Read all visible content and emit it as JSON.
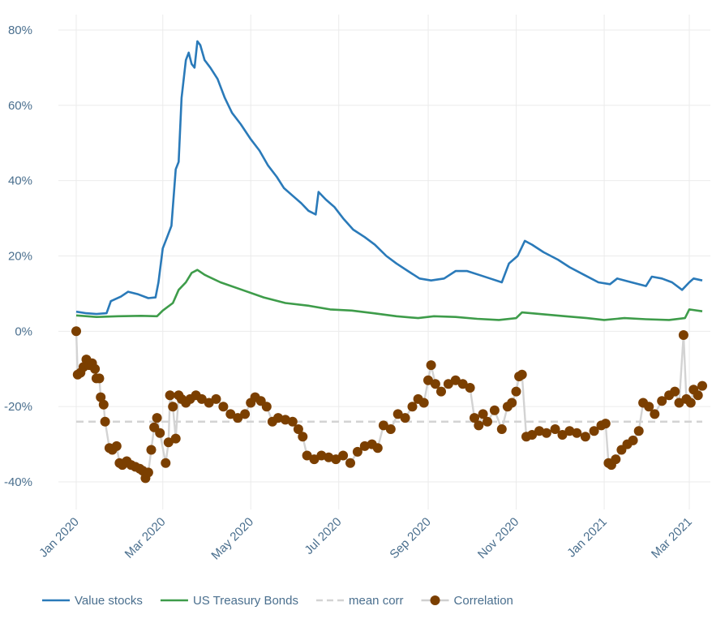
{
  "chart_data": {
    "type": "line",
    "title": "",
    "xlabel": "",
    "ylabel": "",
    "ylim": [
      -0.48,
      0.82
    ],
    "y_ticks": [
      {
        "value": 0.8,
        "label": "80%"
      },
      {
        "value": 0.6,
        "label": "60%"
      },
      {
        "value": 0.4,
        "label": "40%"
      },
      {
        "value": 0.2,
        "label": "20%"
      },
      {
        "value": 0.0,
        "label": "0%"
      },
      {
        "value": -0.2,
        "label": "-20%"
      },
      {
        "value": -0.4,
        "label": "-40%"
      }
    ],
    "x_ticks": [
      {
        "date": "2020-01-01",
        "label": "Jan 2020"
      },
      {
        "date": "2020-03-01",
        "label": "Mar 2020"
      },
      {
        "date": "2020-05-01",
        "label": "May 2020"
      },
      {
        "date": "2020-07-01",
        "label": "Jul 2020"
      },
      {
        "date": "2020-09-01",
        "label": "Sep 2020"
      },
      {
        "date": "2020-11-01",
        "label": "Nov 2020"
      },
      {
        "date": "2021-01-01",
        "label": "Jan 2021"
      },
      {
        "date": "2021-03-01",
        "label": "Mar 2021"
      }
    ],
    "grid": true,
    "legend_position": "bottom-left",
    "series": [
      {
        "name": "Value stocks",
        "type": "line",
        "color": "#2a7ab9",
        "points": [
          [
            "2020-01-01",
            0.052
          ],
          [
            "2020-01-08",
            0.048
          ],
          [
            "2020-01-15",
            0.046
          ],
          [
            "2020-01-22",
            0.048
          ],
          [
            "2020-01-25",
            0.08
          ],
          [
            "2020-02-01",
            0.092
          ],
          [
            "2020-02-06",
            0.105
          ],
          [
            "2020-02-13",
            0.098
          ],
          [
            "2020-02-20",
            0.088
          ],
          [
            "2020-02-25",
            0.09
          ],
          [
            "2020-02-27",
            0.13
          ],
          [
            "2020-03-01",
            0.22
          ],
          [
            "2020-03-04",
            0.25
          ],
          [
            "2020-03-07",
            0.28
          ],
          [
            "2020-03-10",
            0.43
          ],
          [
            "2020-03-12",
            0.45
          ],
          [
            "2020-03-14",
            0.62
          ],
          [
            "2020-03-17",
            0.72
          ],
          [
            "2020-03-19",
            0.74
          ],
          [
            "2020-03-21",
            0.71
          ],
          [
            "2020-03-23",
            0.7
          ],
          [
            "2020-03-25",
            0.77
          ],
          [
            "2020-03-27",
            0.76
          ],
          [
            "2020-03-30",
            0.72
          ],
          [
            "2020-04-03",
            0.7
          ],
          [
            "2020-04-08",
            0.67
          ],
          [
            "2020-04-13",
            0.62
          ],
          [
            "2020-04-18",
            0.58
          ],
          [
            "2020-04-24",
            0.55
          ],
          [
            "2020-05-01",
            0.51
          ],
          [
            "2020-05-07",
            0.48
          ],
          [
            "2020-05-13",
            0.44
          ],
          [
            "2020-05-19",
            0.41
          ],
          [
            "2020-05-24",
            0.38
          ],
          [
            "2020-05-30",
            0.36
          ],
          [
            "2020-06-05",
            0.34
          ],
          [
            "2020-06-10",
            0.32
          ],
          [
            "2020-06-15",
            0.31
          ],
          [
            "2020-06-17",
            0.37
          ],
          [
            "2020-06-22",
            0.35
          ],
          [
            "2020-06-28",
            0.33
          ],
          [
            "2020-07-04",
            0.3
          ],
          [
            "2020-07-11",
            0.27
          ],
          [
            "2020-07-19",
            0.25
          ],
          [
            "2020-07-26",
            0.23
          ],
          [
            "2020-08-03",
            0.2
          ],
          [
            "2020-08-10",
            0.18
          ],
          [
            "2020-08-18",
            0.16
          ],
          [
            "2020-08-26",
            0.14
          ],
          [
            "2020-09-03",
            0.135
          ],
          [
            "2020-09-12",
            0.14
          ],
          [
            "2020-09-20",
            0.16
          ],
          [
            "2020-09-28",
            0.16
          ],
          [
            "2020-10-06",
            0.15
          ],
          [
            "2020-10-14",
            0.14
          ],
          [
            "2020-10-22",
            0.13
          ],
          [
            "2020-10-27",
            0.18
          ],
          [
            "2020-11-02",
            0.2
          ],
          [
            "2020-11-07",
            0.24
          ],
          [
            "2020-11-12",
            0.23
          ],
          [
            "2020-11-20",
            0.21
          ],
          [
            "2020-11-30",
            0.19
          ],
          [
            "2020-12-08",
            0.17
          ],
          [
            "2020-12-18",
            0.15
          ],
          [
            "2020-12-28",
            0.13
          ],
          [
            "2021-01-05",
            0.125
          ],
          [
            "2021-01-10",
            0.14
          ],
          [
            "2021-01-20",
            0.13
          ],
          [
            "2021-01-30",
            0.12
          ],
          [
            "2021-02-03",
            0.145
          ],
          [
            "2021-02-10",
            0.14
          ],
          [
            "2021-02-17",
            0.13
          ],
          [
            "2021-02-24",
            0.11
          ],
          [
            "2021-03-01",
            0.13
          ],
          [
            "2021-03-04",
            0.14
          ],
          [
            "2021-03-10",
            0.135
          ]
        ]
      },
      {
        "name": "US Treasury Bonds",
        "type": "line",
        "color": "#3e9c4a",
        "points": [
          [
            "2020-01-01",
            0.042
          ],
          [
            "2020-01-15",
            0.038
          ],
          [
            "2020-01-30",
            0.04
          ],
          [
            "2020-02-15",
            0.041
          ],
          [
            "2020-02-26",
            0.04
          ],
          [
            "2020-03-01",
            0.055
          ],
          [
            "2020-03-08",
            0.075
          ],
          [
            "2020-03-12",
            0.11
          ],
          [
            "2020-03-17",
            0.13
          ],
          [
            "2020-03-21",
            0.155
          ],
          [
            "2020-03-25",
            0.163
          ],
          [
            "2020-03-30",
            0.15
          ],
          [
            "2020-04-10",
            0.13
          ],
          [
            "2020-04-25",
            0.11
          ],
          [
            "2020-05-10",
            0.09
          ],
          [
            "2020-05-25",
            0.075
          ],
          [
            "2020-06-10",
            0.068
          ],
          [
            "2020-06-25",
            0.058
          ],
          [
            "2020-07-10",
            0.055
          ],
          [
            "2020-07-25",
            0.048
          ],
          [
            "2020-08-10",
            0.04
          ],
          [
            "2020-08-25",
            0.035
          ],
          [
            "2020-09-05",
            0.04
          ],
          [
            "2020-09-20",
            0.038
          ],
          [
            "2020-10-05",
            0.033
          ],
          [
            "2020-10-20",
            0.03
          ],
          [
            "2020-11-01",
            0.035
          ],
          [
            "2020-11-05",
            0.05
          ],
          [
            "2020-11-20",
            0.045
          ],
          [
            "2020-12-05",
            0.04
          ],
          [
            "2020-12-20",
            0.035
          ],
          [
            "2021-01-01",
            0.03
          ],
          [
            "2021-01-15",
            0.035
          ],
          [
            "2021-01-30",
            0.032
          ],
          [
            "2021-02-15",
            0.03
          ],
          [
            "2021-02-26",
            0.035
          ],
          [
            "2021-03-01",
            0.058
          ],
          [
            "2021-03-10",
            0.053
          ]
        ]
      },
      {
        "name": "mean corr",
        "type": "dashed",
        "color": "#d3d3d3",
        "points": [
          [
            "2020-01-01",
            -0.24
          ],
          [
            "2021-03-10",
            -0.24
          ]
        ]
      },
      {
        "name": "Correlation",
        "type": "line+markers",
        "color": "#7b3f00",
        "line_color": "#d3d3d3",
        "points": [
          [
            "2020-01-01",
            0.0
          ],
          [
            "2020-01-02",
            -0.115
          ],
          [
            "2020-01-04",
            -0.11
          ],
          [
            "2020-01-06",
            -0.095
          ],
          [
            "2020-01-08",
            -0.075
          ],
          [
            "2020-01-10",
            -0.09
          ],
          [
            "2020-01-12",
            -0.085
          ],
          [
            "2020-01-14",
            -0.1
          ],
          [
            "2020-01-15",
            -0.125
          ],
          [
            "2020-01-17",
            -0.125
          ],
          [
            "2020-01-18",
            -0.175
          ],
          [
            "2020-01-20",
            -0.195
          ],
          [
            "2020-01-21",
            -0.24
          ],
          [
            "2020-01-24",
            -0.31
          ],
          [
            "2020-01-26",
            -0.315
          ],
          [
            "2020-01-29",
            -0.305
          ],
          [
            "2020-01-31",
            -0.35
          ],
          [
            "2020-02-02",
            -0.355
          ],
          [
            "2020-02-05",
            -0.345
          ],
          [
            "2020-02-08",
            -0.355
          ],
          [
            "2020-02-11",
            -0.36
          ],
          [
            "2020-02-14",
            -0.365
          ],
          [
            "2020-02-16",
            -0.37
          ],
          [
            "2020-02-18",
            -0.39
          ],
          [
            "2020-02-20",
            -0.375
          ],
          [
            "2020-02-22",
            -0.315
          ],
          [
            "2020-02-24",
            -0.255
          ],
          [
            "2020-02-26",
            -0.23
          ],
          [
            "2020-02-28",
            -0.27
          ],
          [
            "2020-03-03",
            -0.35
          ],
          [
            "2020-03-05",
            -0.295
          ],
          [
            "2020-03-06",
            -0.17
          ],
          [
            "2020-03-08",
            -0.2
          ],
          [
            "2020-03-10",
            -0.285
          ],
          [
            "2020-03-12",
            -0.17
          ],
          [
            "2020-03-14",
            -0.18
          ],
          [
            "2020-03-17",
            -0.19
          ],
          [
            "2020-03-20",
            -0.18
          ],
          [
            "2020-03-24",
            -0.17
          ],
          [
            "2020-03-28",
            -0.18
          ],
          [
            "2020-04-02",
            -0.19
          ],
          [
            "2020-04-07",
            -0.18
          ],
          [
            "2020-04-12",
            -0.2
          ],
          [
            "2020-04-17",
            -0.22
          ],
          [
            "2020-04-22",
            -0.23
          ],
          [
            "2020-04-27",
            -0.22
          ],
          [
            "2020-05-01",
            -0.19
          ],
          [
            "2020-05-04",
            -0.175
          ],
          [
            "2020-05-08",
            -0.185
          ],
          [
            "2020-05-12",
            -0.2
          ],
          [
            "2020-05-16",
            -0.24
          ],
          [
            "2020-05-20",
            -0.23
          ],
          [
            "2020-05-25",
            -0.235
          ],
          [
            "2020-05-30",
            -0.24
          ],
          [
            "2020-06-03",
            -0.26
          ],
          [
            "2020-06-06",
            -0.28
          ],
          [
            "2020-06-09",
            -0.33
          ],
          [
            "2020-06-14",
            -0.34
          ],
          [
            "2020-06-19",
            -0.33
          ],
          [
            "2020-06-24",
            -0.335
          ],
          [
            "2020-06-29",
            -0.34
          ],
          [
            "2020-07-04",
            -0.33
          ],
          [
            "2020-07-09",
            -0.35
          ],
          [
            "2020-07-14",
            -0.32
          ],
          [
            "2020-07-19",
            -0.305
          ],
          [
            "2020-07-24",
            -0.3
          ],
          [
            "2020-07-28",
            -0.31
          ],
          [
            "2020-08-01",
            -0.25
          ],
          [
            "2020-08-06",
            -0.26
          ],
          [
            "2020-08-11",
            -0.22
          ],
          [
            "2020-08-16",
            -0.23
          ],
          [
            "2020-08-21",
            -0.2
          ],
          [
            "2020-08-25",
            -0.18
          ],
          [
            "2020-08-29",
            -0.19
          ],
          [
            "2020-09-01",
            -0.13
          ],
          [
            "2020-09-03",
            -0.09
          ],
          [
            "2020-09-06",
            -0.14
          ],
          [
            "2020-09-10",
            -0.16
          ],
          [
            "2020-09-15",
            -0.14
          ],
          [
            "2020-09-20",
            -0.13
          ],
          [
            "2020-09-25",
            -0.14
          ],
          [
            "2020-09-30",
            -0.15
          ],
          [
            "2020-10-03",
            -0.23
          ],
          [
            "2020-10-06",
            -0.25
          ],
          [
            "2020-10-09",
            -0.22
          ],
          [
            "2020-10-12",
            -0.24
          ],
          [
            "2020-10-17",
            -0.21
          ],
          [
            "2020-10-22",
            -0.26
          ],
          [
            "2020-10-26",
            -0.2
          ],
          [
            "2020-10-29",
            -0.19
          ],
          [
            "2020-11-01",
            -0.16
          ],
          [
            "2020-11-03",
            -0.12
          ],
          [
            "2020-11-05",
            -0.115
          ],
          [
            "2020-11-08",
            -0.28
          ],
          [
            "2020-11-12",
            -0.275
          ],
          [
            "2020-11-17",
            -0.265
          ],
          [
            "2020-11-22",
            -0.27
          ],
          [
            "2020-11-28",
            -0.26
          ],
          [
            "2020-12-03",
            -0.275
          ],
          [
            "2020-12-08",
            -0.265
          ],
          [
            "2020-12-13",
            -0.27
          ],
          [
            "2020-12-19",
            -0.28
          ],
          [
            "2020-12-25",
            -0.265
          ],
          [
            "2020-12-30",
            -0.25
          ],
          [
            "2021-01-02",
            -0.245
          ],
          [
            "2021-01-04",
            -0.35
          ],
          [
            "2021-01-06",
            -0.355
          ],
          [
            "2021-01-09",
            -0.34
          ],
          [
            "2021-01-13",
            -0.315
          ],
          [
            "2021-01-17",
            -0.3
          ],
          [
            "2021-01-21",
            -0.29
          ],
          [
            "2021-01-25",
            -0.265
          ],
          [
            "2021-01-28",
            -0.19
          ],
          [
            "2021-02-01",
            -0.2
          ],
          [
            "2021-02-05",
            -0.22
          ],
          [
            "2021-02-10",
            -0.185
          ],
          [
            "2021-02-15",
            -0.17
          ],
          [
            "2021-02-19",
            -0.16
          ],
          [
            "2021-02-22",
            -0.19
          ],
          [
            "2021-02-25",
            -0.01
          ],
          [
            "2021-02-27",
            -0.18
          ],
          [
            "2021-03-02",
            -0.19
          ],
          [
            "2021-03-04",
            -0.155
          ],
          [
            "2021-03-07",
            -0.17
          ],
          [
            "2021-03-10",
            -0.145
          ]
        ]
      }
    ]
  },
  "legend": {
    "items": [
      {
        "label": "Value stocks",
        "symbol": "line",
        "color": "#2a7ab9"
      },
      {
        "label": "US Treasury Bonds",
        "symbol": "line",
        "color": "#3e9c4a"
      },
      {
        "label": "mean corr",
        "symbol": "dashed",
        "color": "#d3d3d3"
      },
      {
        "label": "Correlation",
        "symbol": "marker-line",
        "color": "#7b3f00"
      }
    ]
  }
}
